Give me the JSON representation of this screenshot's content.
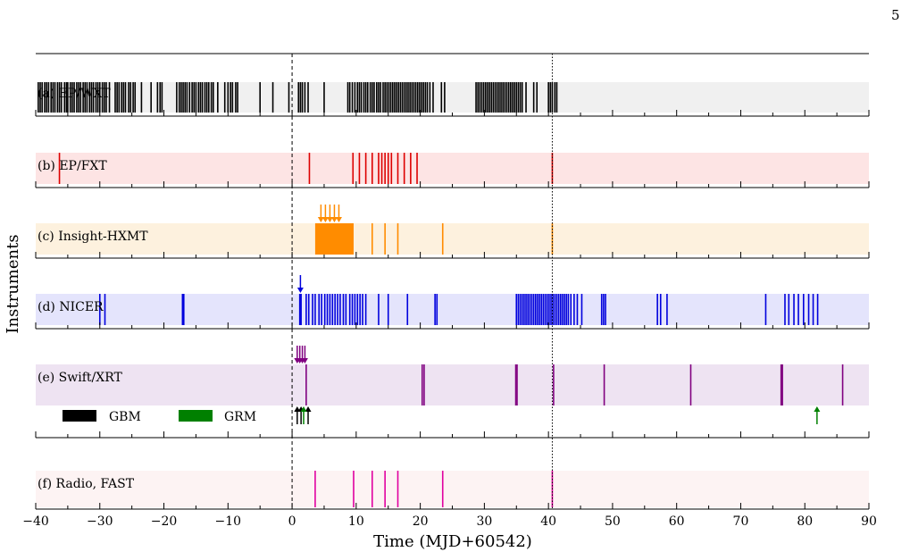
{
  "page_number": "5",
  "chart_data": {
    "type": "timeline",
    "xlabel": "Time (MJD+60542)",
    "ylabel": "Instruments",
    "xlim": [
      -40,
      90
    ],
    "xticks": [
      -40,
      -30,
      -20,
      -10,
      0,
      10,
      20,
      30,
      40,
      50,
      60,
      70,
      80,
      90
    ],
    "xtick_labels": [
      "−40",
      "−30",
      "−20",
      "−10",
      "0",
      "10",
      "20",
      "30",
      "40",
      "50",
      "60",
      "70",
      "80",
      "90"
    ],
    "reference_lines": [
      {
        "x": 0,
        "style": "dashed",
        "color": "#000000"
      },
      {
        "x": 40.6,
        "style": "dotted",
        "color": "#000000"
      }
    ],
    "panels": [
      {
        "label": "(a) EP/WXT",
        "band_color": "#f0f0f0",
        "mark_color": "#000000",
        "observations": [
          -39.6,
          -39.3,
          -39.0,
          -38.6,
          -38.3,
          -38.0,
          -37.6,
          -37.3,
          -37.0,
          -36.6,
          -36.3,
          -36.0,
          -35.5,
          -35.2,
          -35.0,
          -34.6,
          -34.3,
          -34.0,
          -33.6,
          -33.3,
          -33.0,
          -32.6,
          -32.3,
          -32.0,
          -31.6,
          -31.3,
          -31.0,
          -30.6,
          -30.3,
          -30.0,
          -29.6,
          -29.3,
          -29.0,
          -28.5,
          -27.6,
          -27.3,
          -27.0,
          -26.6,
          -26.3,
          -26.0,
          -25.5,
          -25.2,
          -24.8,
          -24.5,
          -23.5,
          -22.0,
          -21.0,
          -20.6,
          -20.3,
          -18.0,
          -17.6,
          -17.3,
          -17.0,
          -16.7,
          -16.4,
          -16.0,
          -15.6,
          -15.3,
          -15.0,
          -14.6,
          -14.3,
          -14.0,
          -13.6,
          -13.3,
          -13.0,
          -12.6,
          -12.3,
          -11.6,
          -10.5,
          -10.0,
          -9.6,
          -9.3,
          -8.8,
          -8.5,
          -5.0,
          -3.0,
          -0.5,
          1.0,
          1.3,
          1.6,
          2.0,
          2.5,
          5.0,
          8.7,
          9.0,
          9.4,
          9.8,
          10.2,
          10.5,
          10.8,
          11.2,
          11.5,
          11.8,
          12.2,
          12.5,
          12.8,
          13.2,
          13.5,
          13.8,
          14.2,
          14.5,
          14.8,
          15.1,
          15.4,
          15.7,
          16.0,
          16.3,
          16.6,
          16.9,
          17.2,
          17.5,
          17.8,
          18.1,
          18.4,
          18.7,
          19.0,
          19.3,
          19.6,
          19.9,
          20.2,
          20.5,
          20.8,
          21.1,
          21.5,
          22.0,
          23.3,
          23.8,
          28.7,
          29.0,
          29.3,
          29.6,
          29.9,
          30.2,
          30.5,
          30.8,
          31.1,
          31.4,
          31.7,
          32.0,
          32.3,
          32.6,
          32.9,
          33.2,
          33.5,
          33.8,
          34.1,
          34.4,
          34.7,
          35.0,
          35.3,
          35.6,
          35.9,
          36.5,
          37.7,
          38.2,
          40.0,
          40.3,
          40.6,
          41.0,
          41.3
        ]
      },
      {
        "label": "(b) EP/FXT",
        "band_color": "#fde4e4",
        "mark_color": "#dd0000",
        "observations": [
          -36.3,
          2.7,
          9.5,
          10.5,
          11.5,
          12.5,
          13.5,
          14.0,
          14.5,
          15.0,
          15.5,
          16.5,
          17.5,
          18.5,
          19.5,
          40.6
        ]
      },
      {
        "label": "(c) Insight-HXMT",
        "band_color": "#fdf1de",
        "mark_color": "#ff8c00",
        "blocks": [
          [
            3.6,
            9.6
          ]
        ],
        "observations": [
          12.5,
          14.5,
          16.5,
          23.5,
          40.6
        ],
        "arrows": [
          4.5,
          5.2,
          5.9,
          6.6,
          7.3
        ]
      },
      {
        "label": "(d) NICER",
        "band_color": "#e4e4fc",
        "mark_color": "#0000dd",
        "observations": [
          -30.0,
          -29.2,
          -17.1,
          -16.9,
          1.2,
          1.4,
          2.2,
          2.6,
          3.2,
          3.6,
          4.2,
          4.6,
          5.1,
          5.5,
          5.9,
          6.3,
          6.7,
          7.1,
          7.5,
          8.0,
          8.4,
          9.0,
          9.4,
          9.8,
          10.2,
          10.6,
          11.0,
          11.5,
          13.5,
          15.0,
          18.0,
          22.3,
          22.6,
          35.0,
          35.3,
          35.6,
          35.9,
          36.2,
          36.5,
          36.8,
          37.1,
          37.4,
          37.7,
          38.0,
          38.3,
          38.6,
          38.9,
          39.2,
          39.5,
          39.8,
          40.1,
          40.4,
          40.7,
          41.0,
          41.3,
          41.6,
          41.9,
          42.2,
          42.5,
          42.8,
          43.1,
          43.5,
          44.0,
          44.5,
          45.2,
          48.3,
          48.6,
          48.9,
          57.0,
          57.5,
          58.5,
          73.9,
          76.9,
          77.5,
          78.3,
          79.0,
          79.8,
          80.6,
          81.3,
          82.0
        ],
        "arrows": [
          1.3
        ]
      },
      {
        "label": "(e) Swift/XRT",
        "band_color": "#eee3f2",
        "mark_color": "#800080",
        "observations": [
          2.2,
          20.3,
          20.6,
          34.9,
          35.1,
          40.8,
          48.7,
          62.2,
          76.3,
          76.5,
          85.9
        ],
        "arrows": [
          0.8,
          1.2,
          1.6,
          2.0
        ],
        "triggers": [
          {
            "name": "GBM",
            "color": "#000000",
            "x": [
              0.8,
              1.4,
              2.5
            ]
          },
          {
            "name": "GRM",
            "color": "#008000",
            "x": [
              1.8,
              81.9
            ]
          }
        ]
      },
      {
        "label": "(f) Radio, FAST",
        "band_color": "#fdf3f3",
        "mark_color": "#e000a0",
        "observations": [
          3.6,
          9.6,
          12.5,
          14.5,
          16.5,
          23.5,
          40.6
        ]
      }
    ],
    "legend": [
      {
        "name": "GBM",
        "color": "#000000"
      },
      {
        "name": "GRM",
        "color": "#008000"
      }
    ]
  }
}
